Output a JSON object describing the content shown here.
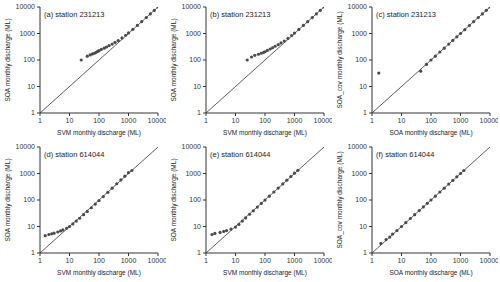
{
  "chart_data": [
    {
      "type": "scatter",
      "annotation": "(a)  station 231213",
      "x_label": "SVM monthly discharge (ML)",
      "y_label": "SOA monthly discharge (ML)",
      "log": true,
      "xlim": [
        1,
        10000
      ],
      "ylim": [
        1,
        10000
      ],
      "xticks": [
        1,
        10,
        100,
        1000,
        10000
      ],
      "yticks": [
        1,
        10,
        100,
        1000,
        10000
      ],
      "series": [
        {
          "color": "#4a4a4a",
          "marker": "circle",
          "x": [
            25,
            40,
            50,
            60,
            70,
            80,
            90,
            100,
            120,
            150,
            180,
            220,
            280,
            350,
            450,
            600,
            800,
            1000,
            1400,
            2000,
            2800,
            4000,
            5500,
            7500,
            10000
          ],
          "values": [
            100,
            140,
            155,
            170,
            180,
            195,
            210,
            225,
            250,
            280,
            310,
            350,
            400,
            460,
            540,
            680,
            860,
            1050,
            1430,
            2020,
            2810,
            4000,
            5500,
            7500,
            10000
          ]
        }
      ],
      "reference_line": {
        "color": "#333333",
        "x": [
          1,
          10000
        ],
        "values": [
          1,
          10000
        ]
      }
    },
    {
      "type": "scatter",
      "annotation": "(b)  station 231213",
      "x_label": "SVM monthly discharge (ML)",
      "y_label": "SOA monthly discharge (ML)",
      "log": true,
      "xlim": [
        1,
        10000
      ],
      "ylim": [
        1,
        10000
      ],
      "xticks": [
        1,
        10,
        100,
        1000,
        10000
      ],
      "yticks": [
        1,
        10,
        100,
        1000,
        10000
      ],
      "series": [
        {
          "color": "#4a4a4a",
          "marker": "circle",
          "x": [
            25,
            35,
            45,
            60,
            75,
            90,
            100,
            120,
            150,
            180,
            220,
            280,
            350,
            450,
            600,
            800,
            1000,
            1400,
            2000,
            2800,
            4000,
            5500,
            7500,
            10000
          ],
          "values": [
            100,
            130,
            150,
            165,
            180,
            195,
            205,
            230,
            260,
            290,
            330,
            380,
            440,
            520,
            660,
            840,
            1040,
            1420,
            2010,
            2800,
            4000,
            5500,
            7500,
            10000
          ]
        }
      ],
      "reference_line": {
        "color": "#333333",
        "x": [
          1,
          10000
        ],
        "values": [
          1,
          10000
        ]
      }
    },
    {
      "type": "scatter",
      "annotation": "(c)  station 231213",
      "x_label": "SOA monthly discharge (ML)",
      "y_label": "SOA_cov monthly discharge (ML)",
      "log": true,
      "xlim": [
        1,
        10000
      ],
      "ylim": [
        1,
        10000
      ],
      "xticks": [
        1,
        10,
        100,
        1000,
        10000
      ],
      "yticks": [
        1,
        10,
        100,
        1000,
        10000
      ],
      "series": [
        {
          "color": "#4a4a4a",
          "marker": "circle",
          "x": [
            1.7,
            45,
            70,
            100,
            140,
            200,
            280,
            400,
            550,
            750,
            1000,
            1400,
            2000,
            2800,
            4000,
            5500,
            7500,
            10000
          ],
          "values": [
            32,
            38,
            68,
            100,
            140,
            200,
            280,
            400,
            550,
            750,
            1000,
            1400,
            2000,
            2800,
            4000,
            5500,
            7500,
            10000
          ]
        }
      ],
      "reference_line": {
        "color": "#333333",
        "x": [
          1,
          10000
        ],
        "values": [
          1,
          10000
        ]
      }
    },
    {
      "type": "scatter",
      "annotation": "(d)  station 614044",
      "x_label": "SVM monthly discharge (ML)",
      "y_label": "SOA monthly discharge (ML)",
      "log": true,
      "xlim": [
        1,
        10000
      ],
      "ylim": [
        1,
        10000
      ],
      "xticks": [
        1,
        10,
        100,
        1000,
        10000
      ],
      "yticks": [
        1,
        10,
        100,
        1000,
        10000
      ],
      "series": [
        {
          "color": "#4a4a4a",
          "marker": "circle",
          "x": [
            1.5,
            2,
            2.5,
            3,
            4,
            5,
            6,
            8,
            10,
            13,
            17,
            22,
            30,
            40,
            55,
            75,
            100,
            140,
            200,
            280,
            400,
            550,
            750,
            1000,
            1300
          ],
          "values": [
            4.5,
            5,
            5.3,
            5.6,
            6.2,
            6.8,
            7.4,
            8.6,
            10,
            12.5,
            16,
            20.5,
            28,
            37,
            51,
            70,
            95,
            135,
            195,
            280,
            410,
            570,
            790,
            1070,
            1300
          ]
        }
      ],
      "reference_line": {
        "color": "#333333",
        "x": [
          1,
          10000
        ],
        "values": [
          1,
          10000
        ]
      }
    },
    {
      "type": "scatter",
      "annotation": "(e)  station 614044",
      "x_label": "SVM monthly discharge (ML)",
      "y_label": "SOA monthly discharge (ML)",
      "log": true,
      "xlim": [
        1,
        10000
      ],
      "ylim": [
        1,
        10000
      ],
      "xticks": [
        1,
        10,
        100,
        1000,
        10000
      ],
      "yticks": [
        1,
        10,
        100,
        1000,
        10000
      ],
      "series": [
        {
          "color": "#4a4a4a",
          "marker": "circle",
          "x": [
            1.6,
            2,
            3,
            4,
            5,
            7,
            10,
            13,
            17,
            22,
            30,
            40,
            55,
            75,
            100,
            140,
            200,
            280,
            400,
            550,
            750,
            1000,
            1300
          ],
          "values": [
            5,
            5.5,
            6,
            6.5,
            7,
            8,
            9.5,
            12,
            16,
            21,
            29,
            39,
            54,
            74,
            99,
            139,
            200,
            282,
            405,
            560,
            770,
            1030,
            1320
          ]
        }
      ],
      "reference_line": {
        "color": "#333333",
        "x": [
          1,
          10000
        ],
        "values": [
          1,
          10000
        ]
      }
    },
    {
      "type": "scatter",
      "annotation": "(f)  station 614044",
      "x_label": "SOA monthly discharge (ML)",
      "y_label": "SOA_cov monthly discharge (ML)",
      "log": true,
      "xlim": [
        1,
        10000
      ],
      "ylim": [
        1,
        10000
      ],
      "xticks": [
        1,
        10,
        100,
        1000,
        10000
      ],
      "yticks": [
        1,
        10,
        100,
        1000,
        10000
      ],
      "series": [
        {
          "color": "#4a4a4a",
          "marker": "circle",
          "x": [
            2,
            3,
            4,
            5,
            7,
            10,
            14,
            20,
            28,
            40,
            55,
            75,
            100,
            140,
            200,
            280,
            400,
            550,
            750,
            1000,
            1300
          ],
          "values": [
            2.3,
            3.2,
            4,
            5.2,
            7,
            10,
            14,
            20,
            28,
            40,
            55,
            75,
            100,
            140,
            200,
            280,
            400,
            550,
            750,
            1000,
            1300
          ]
        }
      ],
      "reference_line": {
        "color": "#333333",
        "x": [
          1,
          10000
        ],
        "values": [
          1,
          10000
        ]
      }
    }
  ]
}
